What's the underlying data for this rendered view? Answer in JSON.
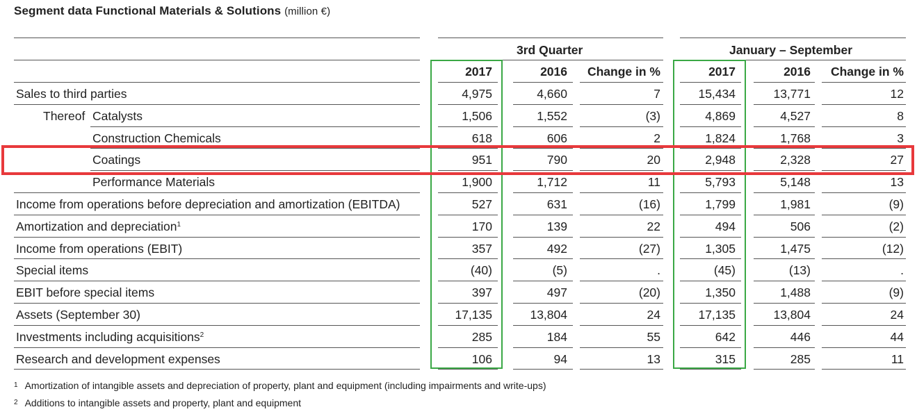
{
  "title": {
    "main": "Segment data Functional Materials & Solutions",
    "unit": "(million €)"
  },
  "groups": {
    "q3": "3rd Quarter",
    "ytd": "January – September"
  },
  "columns": [
    "2017",
    "2016",
    "Change in %",
    "2017",
    "2016",
    "Change in %"
  ],
  "rows": [
    {
      "label": "Sales to third parties",
      "values": [
        "4,975",
        "4,660",
        "7",
        "15,434",
        "13,771",
        "12"
      ]
    },
    {
      "prefix": "Thereof",
      "label": "Catalysts",
      "values": [
        "1,506",
        "1,552",
        "(3)",
        "4,869",
        "4,527",
        "8"
      ]
    },
    {
      "label": "Construction Chemicals",
      "values": [
        "618",
        "606",
        "2",
        "1,824",
        "1,768",
        "3"
      ]
    },
    {
      "label": "Coatings",
      "values": [
        "951",
        "790",
        "20",
        "2,948",
        "2,328",
        "27"
      ]
    },
    {
      "label": "Performance Materials",
      "values": [
        "1,900",
        "1,712",
        "11",
        "5,793",
        "5,148",
        "13"
      ]
    },
    {
      "label": "Income from operations before depreciation and amortization (EBITDA)",
      "values": [
        "527",
        "631",
        "(16)",
        "1,799",
        "1,981",
        "(9)"
      ]
    },
    {
      "label": "Amortization and depreciation",
      "sup": "1",
      "values": [
        "170",
        "139",
        "22",
        "494",
        "506",
        "(2)"
      ]
    },
    {
      "label": "Income from operations (EBIT)",
      "values": [
        "357",
        "492",
        "(27)",
        "1,305",
        "1,475",
        "(12)"
      ]
    },
    {
      "label": "Special items",
      "values": [
        "(40)",
        "(5)",
        ".",
        "(45)",
        "(13)",
        "."
      ]
    },
    {
      "label": "EBIT before special items",
      "values": [
        "397",
        "497",
        "(20)",
        "1,350",
        "1,488",
        "(9)"
      ]
    },
    {
      "label": "Assets (September 30)",
      "values": [
        "17,135",
        "13,804",
        "24",
        "17,135",
        "13,804",
        "24"
      ]
    },
    {
      "label": "Investments including acquisitions",
      "sup": "2",
      "values": [
        "285",
        "184",
        "55",
        "642",
        "446",
        "44"
      ]
    },
    {
      "label": "Research and development expenses",
      "values": [
        "106",
        "94",
        "13",
        "315",
        "285",
        "11"
      ]
    }
  ],
  "footnotes": [
    {
      "mark": "1",
      "text": "Amortization of intangible assets and depreciation of property, plant and equipment (including impairments and write-ups)"
    },
    {
      "mark": "2",
      "text": "Additions to intangible assets and property, plant and equipment"
    }
  ]
}
